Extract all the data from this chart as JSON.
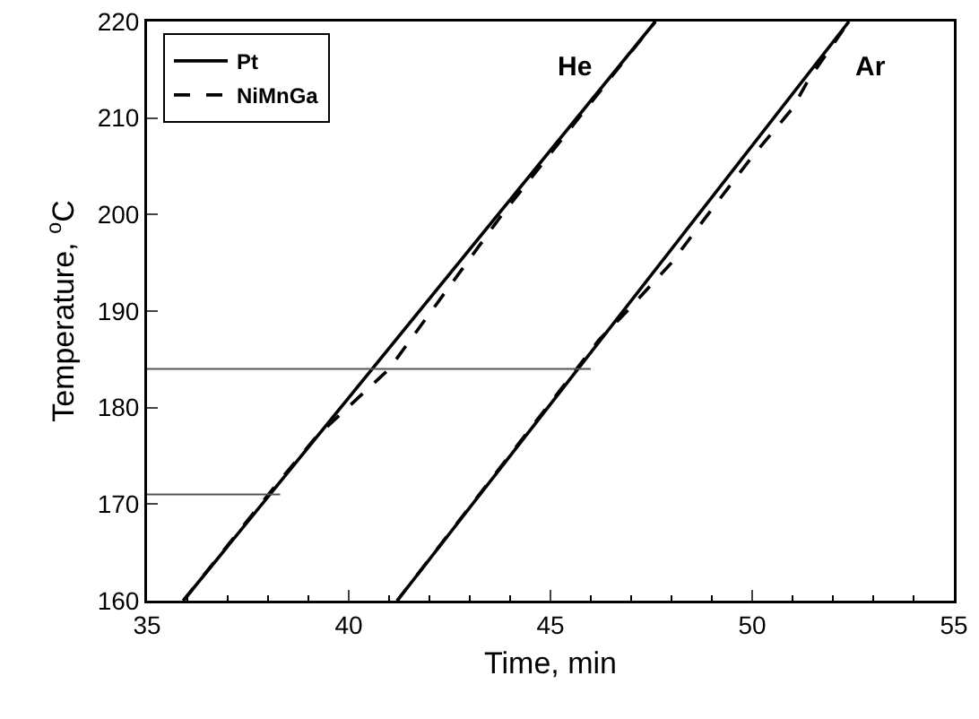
{
  "chart_data": {
    "type": "line",
    "xlabel": "Time, min",
    "ylabel": "Temperature, $^{o}$C",
    "xlim": [
      35,
      55
    ],
    "xticks": [
      35,
      40,
      45,
      50,
      55
    ],
    "ylim": [
      160,
      220
    ],
    "yticks": [
      160,
      170,
      180,
      190,
      200,
      210,
      220
    ],
    "grid": false,
    "legend": "top left",
    "marker": "none",
    "series": [
      {
        "name": "Pt",
        "color": "#000000",
        "line_style": "solid",
        "x": [
          35.9,
          47.6
        ],
        "values": [
          160,
          220
        ]
      },
      {
        "name": "NiMnGa",
        "color": "#000000",
        "line_style": "dashed",
        "x": [
          35.9,
          38.2,
          39.2,
          41.0,
          42.05,
          43.1,
          43.8,
          47.6
        ],
        "values": [
          160,
          172,
          177,
          184,
          190,
          196,
          200,
          220
        ]
      },
      {
        "color": "#000000",
        "line_style": "solid",
        "x": [
          41.2,
          52.4
        ],
        "values": [
          160,
          220
        ]
      },
      {
        "color": "#000000",
        "line_style": "dashed",
        "x": [
          41.2,
          46.2,
          46.9,
          48.0,
          48.9,
          50.0,
          51.0,
          51.4,
          52.4
        ],
        "values": [
          160,
          187,
          190,
          195,
          200,
          206,
          211,
          214,
          220
        ]
      },
      {
        "color": "#555555",
        "line_style": "solid",
        "x": [
          35,
          46.0
        ],
        "values": [
          184,
          184
        ]
      },
      {
        "color": "#555555",
        "line_style": "solid",
        "x": [
          35,
          38.3
        ],
        "values": [
          171,
          171
        ]
      }
    ],
    "annotations": [
      "He",
      "Ar"
    ]
  }
}
